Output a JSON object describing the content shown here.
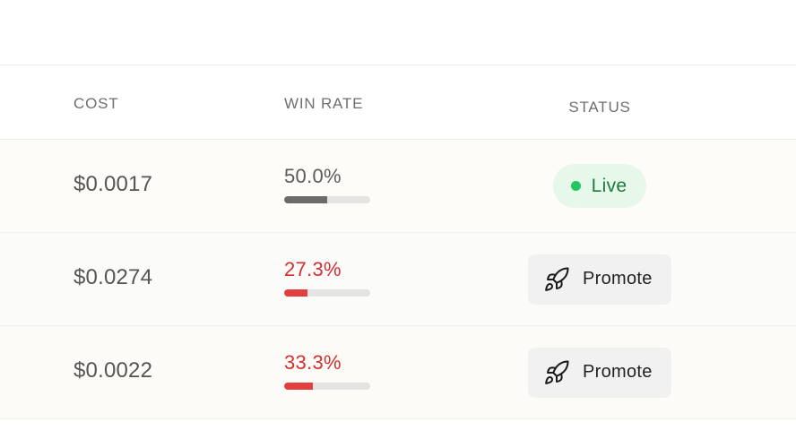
{
  "table": {
    "headers": {
      "cost": "COST",
      "win_rate": "WIN RATE",
      "status": "STATUS"
    },
    "rows": [
      {
        "cost": "$0.0017",
        "win_rate": "50.0%",
        "win_rate_value": 0.5,
        "status": "Live"
      },
      {
        "cost": "$0.0274",
        "win_rate": "27.3%",
        "win_rate_value": 0.273,
        "status": "Promote"
      },
      {
        "cost": "$0.0022",
        "win_rate": "33.3%",
        "win_rate_value": 0.333,
        "status": "Promote"
      }
    ]
  },
  "colors": {
    "live_dot": "#22c55e",
    "live_text": "#1f7a3d",
    "low_win_rate": "#d32f2f",
    "normal_win_rate": "#5a5a5a"
  },
  "icons": {
    "promote": "rocket-icon",
    "live": "status-dot"
  }
}
